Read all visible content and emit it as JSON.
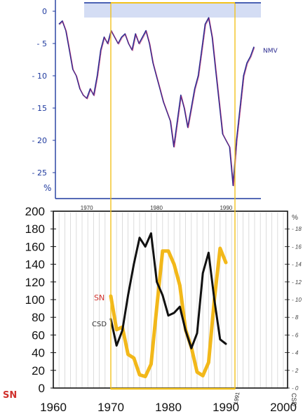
{
  "chart_data": [
    {
      "type": "line",
      "panel": "top",
      "ylabel": "%",
      "y_ticks": [
        0,
        -5,
        -10,
        -15,
        -20,
        -25
      ],
      "x_ticks": [
        "1970",
        "1980",
        "1990"
      ],
      "ylim": [
        -28,
        1.5
      ],
      "xlim": [
        1965.5,
        1995
      ],
      "series": [
        {
          "name": "NMV",
          "x": [
            1966,
            1966.5,
            1967,
            1967.5,
            1968,
            1968.5,
            1969,
            1969.5,
            1970,
            1970.5,
            1971,
            1971.5,
            1972,
            1972.5,
            1973,
            1973.5,
            1974,
            1974.5,
            1975,
            1975.5,
            1976,
            1976.5,
            1977,
            1977.5,
            1978,
            1978.5,
            1979,
            1979.5,
            1980,
            1980.5,
            1981,
            1981.5,
            1982,
            1982.5,
            1983,
            1983.5,
            1984,
            1984.5,
            1985,
            1985.5,
            1986,
            1986.5,
            1987,
            1987.5,
            1988,
            1988.5,
            1989,
            1989.5,
            1990,
            1990.5,
            1991,
            1991.5,
            1992,
            1992.5,
            1993,
            1993.5,
            1994
          ],
          "values": [
            -2,
            -1.5,
            -3,
            -6,
            -9,
            -10,
            -12,
            -13,
            -13.5,
            -12,
            -13,
            -10,
            -6,
            -4,
            -5,
            -3,
            -4,
            -5,
            -4,
            -3.5,
            -5,
            -6,
            -3.5,
            -5,
            -4,
            -3,
            -5,
            -8,
            -10,
            -12,
            -14,
            -15.5,
            -17,
            -21,
            -17,
            -13,
            -15,
            -18,
            -15,
            -12,
            -10,
            -6,
            -2,
            -1,
            -4,
            -9,
            -14,
            -19,
            -20,
            -21,
            -27,
            -20,
            -15,
            -10,
            -8,
            -7,
            -5.5
          ]
        }
      ]
    },
    {
      "type": "line",
      "panel": "bottom",
      "ylabel": "SN",
      "y2label": "%",
      "xlabel": "CSD",
      "ylim": [
        0,
        200
      ],
      "y_ticks": [
        0,
        20,
        40,
        60,
        80,
        100,
        120,
        140,
        160,
        180,
        200
      ],
      "y2lim": [
        0,
        20
      ],
      "y2_ticks": [
        0,
        2,
        4,
        6,
        8,
        10,
        12,
        14,
        16,
        18
      ],
      "xlim": [
        1960,
        2000
      ],
      "x_ticks": [
        1960,
        1970,
        1980,
        1990,
        2000
      ],
      "x_annotation": "1991",
      "series": [
        {
          "name": "SN",
          "color": "#f2b81a",
          "axis": "left",
          "x": [
            1970,
            1971,
            1972,
            1973,
            1974,
            1975,
            1976,
            1977,
            1978,
            1979,
            1980,
            1981,
            1982,
            1983,
            1984,
            1985,
            1986,
            1987,
            1988,
            1989,
            1990
          ],
          "values": [
            104,
            66,
            69,
            38,
            34,
            15,
            13,
            27,
            92,
            155,
            155,
            140,
            116,
            66,
            46,
            18,
            14,
            29,
            100,
            158,
            142
          ]
        },
        {
          "name": "CSD",
          "color": "#111111",
          "axis": "right",
          "x": [
            1970,
            1971,
            1972,
            1973,
            1974,
            1975,
            1976,
            1977,
            1978,
            1979,
            1980,
            1981,
            1982,
            1983,
            1984,
            1985,
            1986,
            1987,
            1988,
            1989,
            1990
          ],
          "values": [
            7.8,
            4.8,
            6.5,
            10.5,
            14,
            17,
            16,
            17.5,
            12,
            10.5,
            8.2,
            8.5,
            9.2,
            6.5,
            4.5,
            6.2,
            13,
            15.3,
            10,
            5.5,
            5
          ]
        }
      ],
      "labels": {
        "sn_side": "SN",
        "csd_side": "CSD",
        "sn_bottom": "SN"
      }
    }
  ],
  "colors": {
    "highlight": "#f2c21e",
    "top_axis": "#1f3a9e",
    "nmv_line": "#2b2b8f",
    "nmv_accent": "#c02b6e"
  }
}
